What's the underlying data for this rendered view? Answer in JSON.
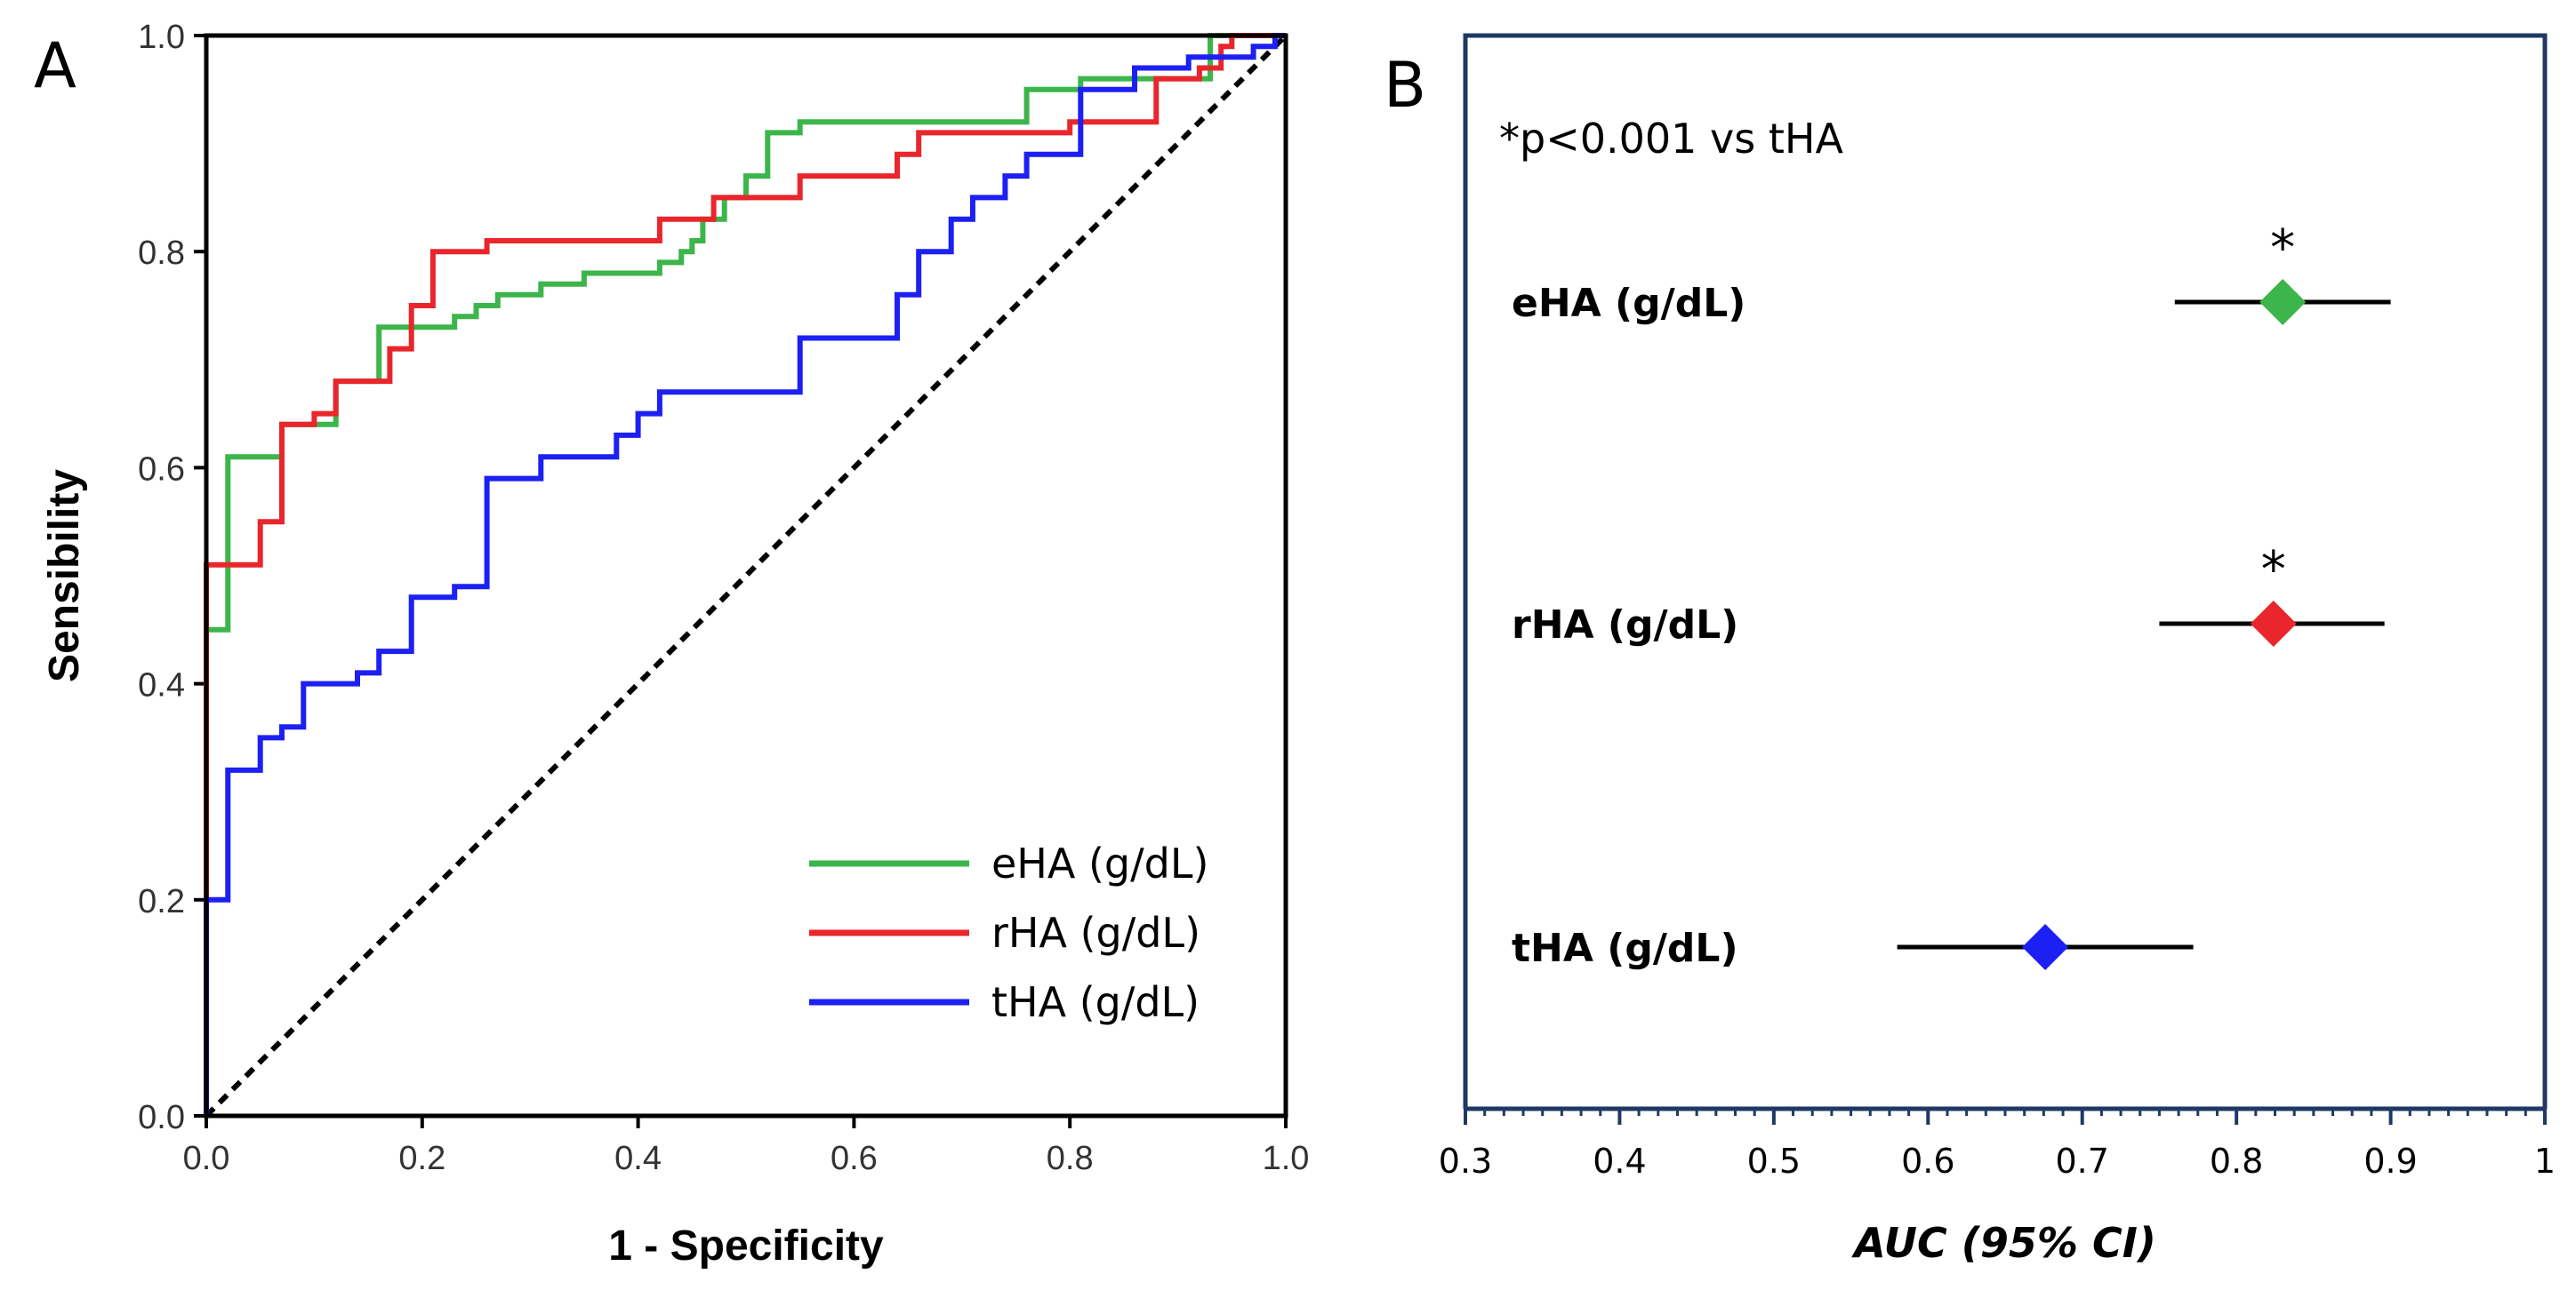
{
  "panel_a": {
    "letter": "A",
    "chart_data": {
      "type": "line",
      "title": "",
      "xlabel": "1 - Specificity",
      "ylabel": "Sensibility",
      "xlim": [
        0,
        1
      ],
      "ylim": [
        0,
        1
      ],
      "xticks": [
        0,
        0.2,
        0.4,
        0.6,
        0.8,
        1.0
      ],
      "xtick_labels": [
        "0.0",
        "0.2",
        "0.4",
        "0.6",
        "0.8",
        "1.0"
      ],
      "yticks": [
        0,
        0.2,
        0.4,
        0.6,
        0.8,
        1.0
      ],
      "ytick_labels": [
        "0.0",
        "0.2",
        "0.4",
        "0.6",
        "0.8",
        "1.0"
      ],
      "legend_position": "bottom-right",
      "reference_line": {
        "style": "dashed",
        "color": "#000000",
        "from": [
          0,
          0
        ],
        "to": [
          1,
          1
        ]
      },
      "series": [
        {
          "name": "eHA (g/dL)",
          "color": "#3cb54a",
          "points": [
            [
              0,
              0
            ],
            [
              0,
              0.45
            ],
            [
              0.02,
              0.45
            ],
            [
              0.02,
              0.61
            ],
            [
              0.07,
              0.61
            ],
            [
              0.07,
              0.64
            ],
            [
              0.12,
              0.64
            ],
            [
              0.12,
              0.68
            ],
            [
              0.16,
              0.68
            ],
            [
              0.16,
              0.73
            ],
            [
              0.23,
              0.73
            ],
            [
              0.23,
              0.74
            ],
            [
              0.25,
              0.74
            ],
            [
              0.25,
              0.75
            ],
            [
              0.27,
              0.75
            ],
            [
              0.27,
              0.76
            ],
            [
              0.31,
              0.76
            ],
            [
              0.31,
              0.77
            ],
            [
              0.35,
              0.77
            ],
            [
              0.35,
              0.78
            ],
            [
              0.42,
              0.78
            ],
            [
              0.42,
              0.79
            ],
            [
              0.44,
              0.79
            ],
            [
              0.44,
              0.8
            ],
            [
              0.45,
              0.8
            ],
            [
              0.45,
              0.81
            ],
            [
              0.46,
              0.81
            ],
            [
              0.46,
              0.83
            ],
            [
              0.48,
              0.83
            ],
            [
              0.48,
              0.85
            ],
            [
              0.5,
              0.85
            ],
            [
              0.5,
              0.87
            ],
            [
              0.52,
              0.87
            ],
            [
              0.52,
              0.91
            ],
            [
              0.55,
              0.91
            ],
            [
              0.55,
              0.92
            ],
            [
              0.76,
              0.92
            ],
            [
              0.76,
              0.95
            ],
            [
              0.81,
              0.95
            ],
            [
              0.81,
              0.96
            ],
            [
              0.93,
              0.96
            ],
            [
              0.93,
              1.0
            ],
            [
              1,
              1
            ]
          ]
        },
        {
          "name": "rHA (g/dL)",
          "color": "#e8262c",
          "points": [
            [
              0,
              0
            ],
            [
              0,
              0.51
            ],
            [
              0.05,
              0.51
            ],
            [
              0.05,
              0.55
            ],
            [
              0.07,
              0.55
            ],
            [
              0.07,
              0.64
            ],
            [
              0.1,
              0.64
            ],
            [
              0.1,
              0.65
            ],
            [
              0.12,
              0.65
            ],
            [
              0.12,
              0.68
            ],
            [
              0.17,
              0.68
            ],
            [
              0.17,
              0.71
            ],
            [
              0.19,
              0.71
            ],
            [
              0.19,
              0.75
            ],
            [
              0.21,
              0.75
            ],
            [
              0.21,
              0.8
            ],
            [
              0.26,
              0.8
            ],
            [
              0.26,
              0.81
            ],
            [
              0.42,
              0.81
            ],
            [
              0.42,
              0.83
            ],
            [
              0.47,
              0.83
            ],
            [
              0.47,
              0.85
            ],
            [
              0.55,
              0.85
            ],
            [
              0.55,
              0.87
            ],
            [
              0.64,
              0.87
            ],
            [
              0.64,
              0.89
            ],
            [
              0.66,
              0.89
            ],
            [
              0.66,
              0.91
            ],
            [
              0.8,
              0.91
            ],
            [
              0.8,
              0.92
            ],
            [
              0.88,
              0.92
            ],
            [
              0.88,
              0.96
            ],
            [
              0.92,
              0.96
            ],
            [
              0.92,
              0.97
            ],
            [
              0.94,
              0.97
            ],
            [
              0.94,
              0.99
            ],
            [
              0.95,
              0.99
            ],
            [
              0.95,
              1.0
            ],
            [
              1,
              1
            ]
          ]
        },
        {
          "name": "tHA (g/dL)",
          "color": "#1d20f2",
          "points": [
            [
              0,
              0
            ],
            [
              0,
              0.2
            ],
            [
              0.02,
              0.2
            ],
            [
              0.02,
              0.32
            ],
            [
              0.05,
              0.32
            ],
            [
              0.05,
              0.35
            ],
            [
              0.07,
              0.35
            ],
            [
              0.07,
              0.36
            ],
            [
              0.09,
              0.36
            ],
            [
              0.09,
              0.4
            ],
            [
              0.14,
              0.4
            ],
            [
              0.14,
              0.41
            ],
            [
              0.16,
              0.41
            ],
            [
              0.16,
              0.43
            ],
            [
              0.19,
              0.43
            ],
            [
              0.19,
              0.48
            ],
            [
              0.23,
              0.48
            ],
            [
              0.23,
              0.49
            ],
            [
              0.26,
              0.49
            ],
            [
              0.26,
              0.59
            ],
            [
              0.31,
              0.59
            ],
            [
              0.31,
              0.61
            ],
            [
              0.38,
              0.61
            ],
            [
              0.38,
              0.63
            ],
            [
              0.4,
              0.63
            ],
            [
              0.4,
              0.65
            ],
            [
              0.42,
              0.65
            ],
            [
              0.42,
              0.67
            ],
            [
              0.55,
              0.67
            ],
            [
              0.55,
              0.72
            ],
            [
              0.64,
              0.72
            ],
            [
              0.64,
              0.76
            ],
            [
              0.66,
              0.76
            ],
            [
              0.66,
              0.8
            ],
            [
              0.69,
              0.8
            ],
            [
              0.69,
              0.83
            ],
            [
              0.71,
              0.83
            ],
            [
              0.71,
              0.85
            ],
            [
              0.74,
              0.85
            ],
            [
              0.74,
              0.87
            ],
            [
              0.76,
              0.87
            ],
            [
              0.76,
              0.89
            ],
            [
              0.81,
              0.89
            ],
            [
              0.81,
              0.95
            ],
            [
              0.86,
              0.95
            ],
            [
              0.86,
              0.97
            ],
            [
              0.91,
              0.97
            ],
            [
              0.91,
              0.98
            ],
            [
              0.97,
              0.98
            ],
            [
              0.97,
              0.99
            ],
            [
              0.99,
              0.99
            ],
            [
              0.99,
              1.0
            ],
            [
              1,
              1
            ]
          ]
        }
      ]
    }
  },
  "panel_b": {
    "letter": "B",
    "annotation": "*p<0.001 vs tHA",
    "chart_data": {
      "type": "scatter",
      "title": "",
      "xlabel": "AUC (95% CI)",
      "xlim": [
        0.3,
        1.0
      ],
      "xticks": [
        0.3,
        0.4,
        0.5,
        0.6,
        0.7,
        0.8,
        0.9,
        1.0
      ],
      "xtick_labels": [
        "0.3",
        "0.4",
        "0.5",
        "0.6",
        "0.7",
        "0.8",
        "0.9",
        "1"
      ],
      "frame_color": "#1f3864",
      "series": [
        {
          "name": "eHA (g/dL)",
          "auc": 0.83,
          "ci_low": 0.76,
          "ci_high": 0.9,
          "color": "#3cb54a",
          "significance": "*"
        },
        {
          "name": "rHA (g/dL)",
          "auc": 0.824,
          "ci_low": 0.75,
          "ci_high": 0.896,
          "color": "#e8262c",
          "significance": "*"
        },
        {
          "name": "tHA (g/dL)",
          "auc": 0.676,
          "ci_low": 0.58,
          "ci_high": 0.772,
          "color": "#1d20f2",
          "significance": ""
        }
      ]
    }
  }
}
